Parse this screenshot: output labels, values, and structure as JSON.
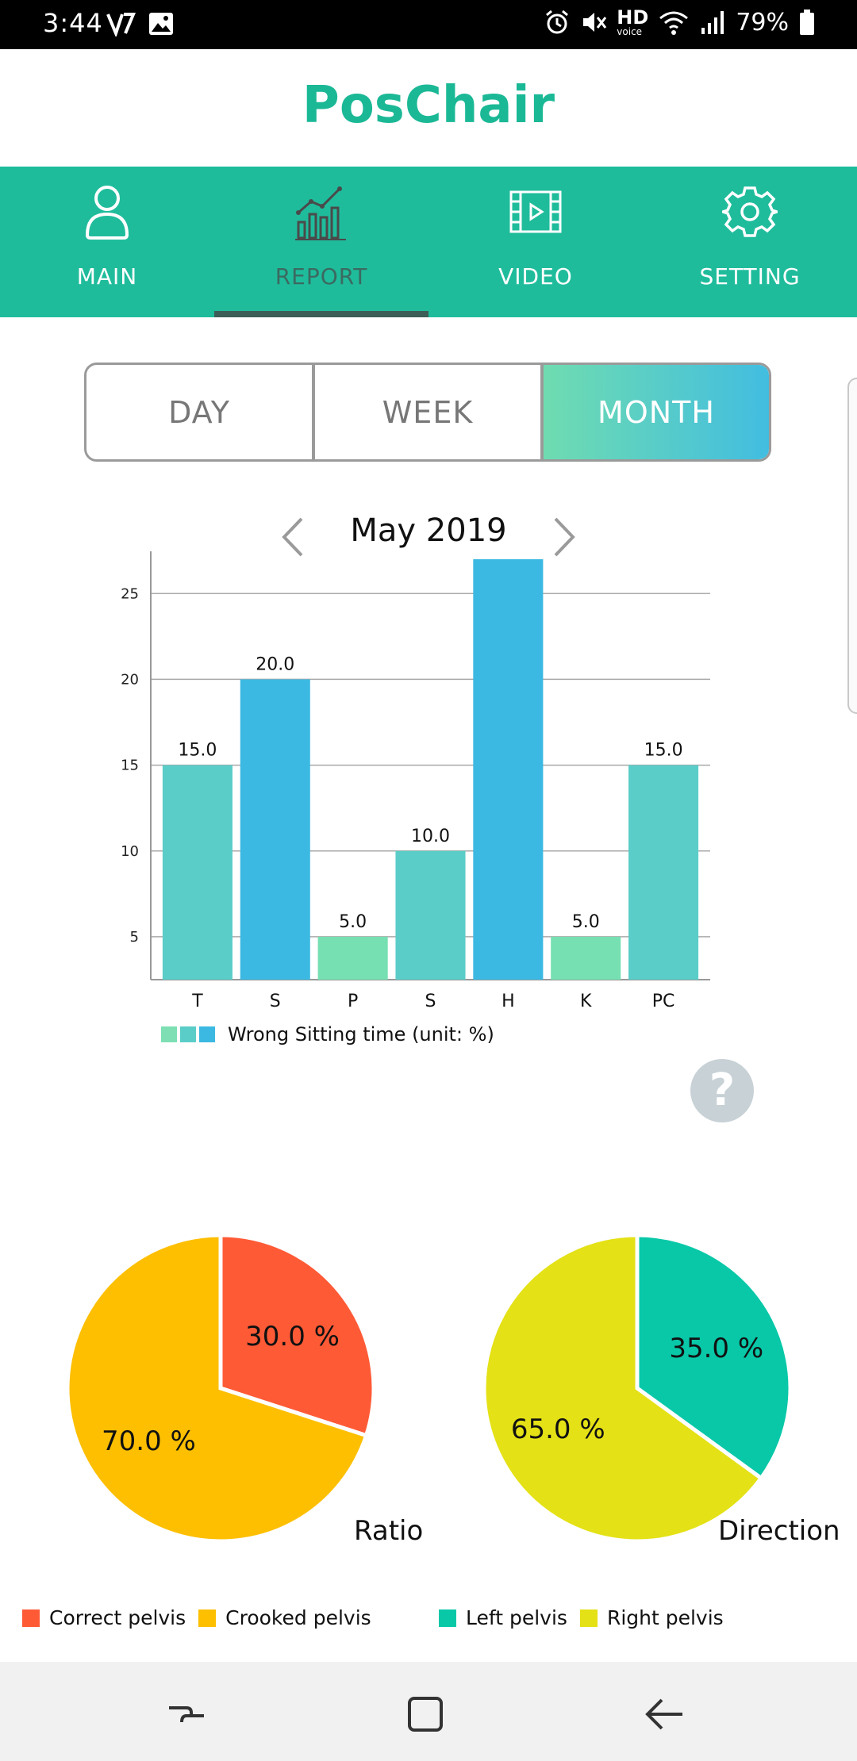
{
  "status_bar": {
    "time": "3:44",
    "hd_label": "HD",
    "hd_sub": "voice",
    "battery": "79%"
  },
  "app": {
    "title": "PosChair"
  },
  "tabs": [
    {
      "label": "MAIN",
      "icon": "person-icon",
      "active": false
    },
    {
      "label": "REPORT",
      "icon": "chart-icon",
      "active": true
    },
    {
      "label": "VIDEO",
      "icon": "film-icon",
      "active": false
    },
    {
      "label": "SETTING",
      "icon": "gear-icon",
      "active": false
    }
  ],
  "period": {
    "day": "DAY",
    "week": "WEEK",
    "month": "MONTH",
    "selected": "MONTH"
  },
  "month_nav": {
    "label": "May 2019"
  },
  "bar_legend": {
    "label": "Wrong Sitting time (unit: %)",
    "colors": [
      "#7ddfb3",
      "#5bcdc8",
      "#3cb9e2"
    ]
  },
  "chart_data": [
    {
      "type": "bar",
      "categories": [
        "T",
        "S",
        "P",
        "S",
        "H",
        "K",
        "PC"
      ],
      "values": [
        15.0,
        20.0,
        5.0,
        10.0,
        27.0,
        5.0,
        15.0
      ],
      "value_labels": [
        "15.0",
        "20.0",
        "5.0",
        "10.0",
        "",
        "5.0",
        "15.0"
      ],
      "colors": [
        "#5bcdc8",
        "#3cb9e2",
        "#76e0b2",
        "#5bcdc8",
        "#3cb9e2",
        "#76e0b2",
        "#5bcdc8"
      ],
      "yticks": [
        5,
        10,
        15,
        20,
        25
      ],
      "ylim": [
        2.5,
        27
      ],
      "grid": true,
      "legend": "Wrong Sitting time (unit: %)"
    },
    {
      "type": "pie",
      "title": "Ratio",
      "slices": [
        {
          "label": "Correct pelvis",
          "value": 30.0,
          "text": "30.0 %",
          "color": "#ff5a36"
        },
        {
          "label": "Crooked pelvis",
          "value": 70.0,
          "text": "70.0 %",
          "color": "#fdbf00"
        }
      ]
    },
    {
      "type": "pie",
      "title": "Direction",
      "slices": [
        {
          "label": "Left pelvis",
          "value": 35.0,
          "text": "35.0 %",
          "color": "#08c8a8"
        },
        {
          "label": "Right pelvis",
          "value": 65.0,
          "text": "65.0 %",
          "color": "#e4e116"
        }
      ]
    }
  ],
  "colors": {
    "brand": "#1fbc9c",
    "tab_active_text": "#3b6a60",
    "indicator": "#3c5e57"
  },
  "nav": {
    "recents_icon": "recents-icon",
    "home_icon": "home-icon",
    "back_icon": "back-icon"
  }
}
